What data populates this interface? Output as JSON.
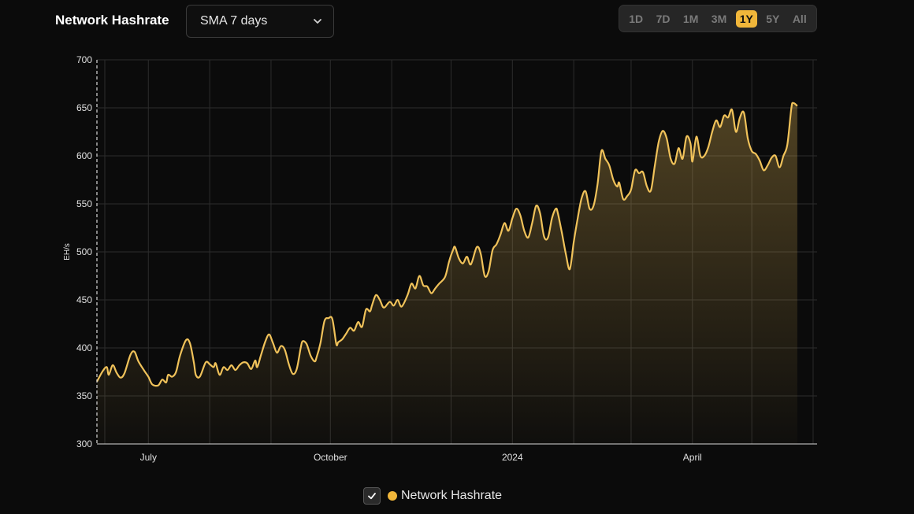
{
  "header": {
    "title": "Network Hashrate",
    "sma_select": {
      "value": "SMA 7 days"
    },
    "ranges": [
      "1D",
      "7D",
      "1M",
      "3M",
      "1Y",
      "5Y",
      "All"
    ],
    "active_range": "1Y"
  },
  "colors": {
    "background": "#0b0b0b",
    "line": "#f0c25a",
    "accent": "#f0b63a",
    "grid": "#2c2c2c",
    "axis_text": "#e0e0e0"
  },
  "legend": {
    "label": "Network Hashrate",
    "checked": true
  },
  "chart_data": {
    "type": "area",
    "title": "Network Hashrate",
    "ylabel": "EH/s",
    "xlabel": "",
    "ylim": [
      300,
      700
    ],
    "xlim": [
      "2023-06-05",
      "2024-06-03"
    ],
    "yticks": [
      300,
      350,
      400,
      450,
      500,
      550,
      600,
      650,
      700
    ],
    "xticks": [
      {
        "label": "July",
        "date": "2023-07-01"
      },
      {
        "label": "October",
        "date": "2023-10-01"
      },
      {
        "label": "2024",
        "date": "2024-01-01"
      },
      {
        "label": "April",
        "date": "2024-04-01"
      }
    ],
    "grid": true,
    "legend_position": "bottom",
    "series": [
      {
        "name": "Network Hashrate",
        "points": [
          [
            "2023-06-05",
            365
          ],
          [
            "2023-06-08",
            376
          ],
          [
            "2023-06-10",
            380
          ],
          [
            "2023-06-11",
            372
          ],
          [
            "2023-06-13",
            382
          ],
          [
            "2023-06-15",
            374
          ],
          [
            "2023-06-17",
            369
          ],
          [
            "2023-06-19",
            374
          ],
          [
            "2023-06-22",
            393
          ],
          [
            "2023-06-24",
            396
          ],
          [
            "2023-06-26",
            386
          ],
          [
            "2023-06-29",
            376
          ],
          [
            "2023-07-01",
            370
          ],
          [
            "2023-07-03",
            362
          ],
          [
            "2023-07-06",
            361
          ],
          [
            "2023-07-08",
            367
          ],
          [
            "2023-07-10",
            364
          ],
          [
            "2023-07-11",
            372
          ],
          [
            "2023-07-13",
            370
          ],
          [
            "2023-07-15",
            375
          ],
          [
            "2023-07-17",
            392
          ],
          [
            "2023-07-20",
            408
          ],
          [
            "2023-07-22",
            405
          ],
          [
            "2023-07-24",
            385
          ],
          [
            "2023-07-25",
            372
          ],
          [
            "2023-07-27",
            370
          ],
          [
            "2023-07-30",
            385
          ],
          [
            "2023-08-01",
            383
          ],
          [
            "2023-08-03",
            380
          ],
          [
            "2023-08-04",
            384
          ],
          [
            "2023-08-06",
            372
          ],
          [
            "2023-08-08",
            380
          ],
          [
            "2023-08-10",
            377
          ],
          [
            "2023-08-12",
            382
          ],
          [
            "2023-08-14",
            377
          ],
          [
            "2023-08-16",
            382
          ],
          [
            "2023-08-18",
            385
          ],
          [
            "2023-08-20",
            384
          ],
          [
            "2023-08-22",
            378
          ],
          [
            "2023-08-24",
            387
          ],
          [
            "2023-08-25",
            380
          ],
          [
            "2023-08-27",
            393
          ],
          [
            "2023-08-29",
            406
          ],
          [
            "2023-08-31",
            414
          ],
          [
            "2023-09-02",
            405
          ],
          [
            "2023-09-04",
            395
          ],
          [
            "2023-09-06",
            402
          ],
          [
            "2023-09-08",
            398
          ],
          [
            "2023-09-10",
            383
          ],
          [
            "2023-09-12",
            373
          ],
          [
            "2023-09-14",
            378
          ],
          [
            "2023-09-16",
            400
          ],
          [
            "2023-09-17",
            407
          ],
          [
            "2023-09-19",
            404
          ],
          [
            "2023-09-21",
            392
          ],
          [
            "2023-09-23",
            386
          ],
          [
            "2023-09-24",
            390
          ],
          [
            "2023-09-26",
            405
          ],
          [
            "2023-09-28",
            428
          ],
          [
            "2023-09-30",
            431
          ],
          [
            "2023-10-02",
            430
          ],
          [
            "2023-10-04",
            404
          ],
          [
            "2023-10-05",
            406
          ],
          [
            "2023-10-07",
            409
          ],
          [
            "2023-10-09",
            415
          ],
          [
            "2023-10-11",
            421
          ],
          [
            "2023-10-13",
            418
          ],
          [
            "2023-10-15",
            427
          ],
          [
            "2023-10-17",
            422
          ],
          [
            "2023-10-19",
            440
          ],
          [
            "2023-10-21",
            438
          ],
          [
            "2023-10-22",
            444
          ],
          [
            "2023-10-24",
            455
          ],
          [
            "2023-10-26",
            450
          ],
          [
            "2023-10-28",
            442
          ],
          [
            "2023-10-31",
            448
          ],
          [
            "2023-11-02",
            444
          ],
          [
            "2023-11-04",
            450
          ],
          [
            "2023-11-06",
            443
          ],
          [
            "2023-11-09",
            455
          ],
          [
            "2023-11-11",
            467
          ],
          [
            "2023-11-13",
            462
          ],
          [
            "2023-11-15",
            475
          ],
          [
            "2023-11-17",
            465
          ],
          [
            "2023-11-19",
            464
          ],
          [
            "2023-11-21",
            457
          ],
          [
            "2023-11-23",
            462
          ],
          [
            "2023-11-25",
            467
          ],
          [
            "2023-11-28",
            474
          ],
          [
            "2023-11-30",
            490
          ],
          [
            "2023-12-02",
            502
          ],
          [
            "2023-12-03",
            505
          ],
          [
            "2023-12-05",
            493
          ],
          [
            "2023-12-07",
            488
          ],
          [
            "2023-12-09",
            495
          ],
          [
            "2023-12-11",
            487
          ],
          [
            "2023-12-14",
            505
          ],
          [
            "2023-12-16",
            498
          ],
          [
            "2023-12-18",
            475
          ],
          [
            "2023-12-20",
            480
          ],
          [
            "2023-12-22",
            502
          ],
          [
            "2023-12-24",
            508
          ],
          [
            "2023-12-26",
            518
          ],
          [
            "2023-12-28",
            530
          ],
          [
            "2023-12-30",
            522
          ],
          [
            "2024-01-01",
            535
          ],
          [
            "2024-01-03",
            545
          ],
          [
            "2024-01-05",
            538
          ],
          [
            "2024-01-07",
            522
          ],
          [
            "2024-01-09",
            515
          ],
          [
            "2024-01-11",
            530
          ],
          [
            "2024-01-13",
            548
          ],
          [
            "2024-01-15",
            540
          ],
          [
            "2024-01-17",
            516
          ],
          [
            "2024-01-19",
            515
          ],
          [
            "2024-01-21",
            535
          ],
          [
            "2024-01-23",
            545
          ],
          [
            "2024-01-24",
            540
          ],
          [
            "2024-01-26",
            520
          ],
          [
            "2024-01-28",
            498
          ],
          [
            "2024-01-30",
            482
          ],
          [
            "2024-02-01",
            510
          ],
          [
            "2024-02-03",
            535
          ],
          [
            "2024-02-05",
            556
          ],
          [
            "2024-02-07",
            563
          ],
          [
            "2024-02-09",
            545
          ],
          [
            "2024-02-11",
            548
          ],
          [
            "2024-02-13",
            570
          ],
          [
            "2024-02-15",
            605
          ],
          [
            "2024-02-17",
            597
          ],
          [
            "2024-02-19",
            590
          ],
          [
            "2024-02-21",
            575
          ],
          [
            "2024-02-23",
            568
          ],
          [
            "2024-02-24",
            572
          ],
          [
            "2024-02-26",
            555
          ],
          [
            "2024-02-28",
            558
          ],
          [
            "2024-03-01",
            565
          ],
          [
            "2024-03-03",
            585
          ],
          [
            "2024-03-05",
            582
          ],
          [
            "2024-03-07",
            583
          ],
          [
            "2024-03-09",
            568
          ],
          [
            "2024-03-11",
            564
          ],
          [
            "2024-03-13",
            590
          ],
          [
            "2024-03-15",
            615
          ],
          [
            "2024-03-17",
            626
          ],
          [
            "2024-03-19",
            618
          ],
          [
            "2024-03-21",
            597
          ],
          [
            "2024-03-23",
            592
          ],
          [
            "2024-03-25",
            608
          ],
          [
            "2024-03-27",
            597
          ],
          [
            "2024-03-29",
            620
          ],
          [
            "2024-03-31",
            613
          ],
          [
            "2024-04-01",
            594
          ],
          [
            "2024-04-03",
            620
          ],
          [
            "2024-04-05",
            600
          ],
          [
            "2024-04-07",
            600
          ],
          [
            "2024-04-09",
            609
          ],
          [
            "2024-04-11",
            625
          ],
          [
            "2024-04-13",
            637
          ],
          [
            "2024-04-15",
            630
          ],
          [
            "2024-04-17",
            642
          ],
          [
            "2024-04-19",
            640
          ],
          [
            "2024-04-21",
            648
          ],
          [
            "2024-04-23",
            625
          ],
          [
            "2024-04-25",
            640
          ],
          [
            "2024-04-27",
            645
          ],
          [
            "2024-04-29",
            618
          ],
          [
            "2024-05-01",
            605
          ],
          [
            "2024-05-03",
            602
          ],
          [
            "2024-05-05",
            595
          ],
          [
            "2024-05-07",
            585
          ],
          [
            "2024-05-09",
            590
          ],
          [
            "2024-05-11",
            598
          ],
          [
            "2024-05-13",
            600
          ],
          [
            "2024-05-15",
            588
          ],
          [
            "2024-05-17",
            600
          ],
          [
            "2024-05-19",
            612
          ],
          [
            "2024-05-21",
            650
          ],
          [
            "2024-05-22",
            655
          ],
          [
            "2024-05-24",
            652
          ]
        ]
      }
    ]
  }
}
